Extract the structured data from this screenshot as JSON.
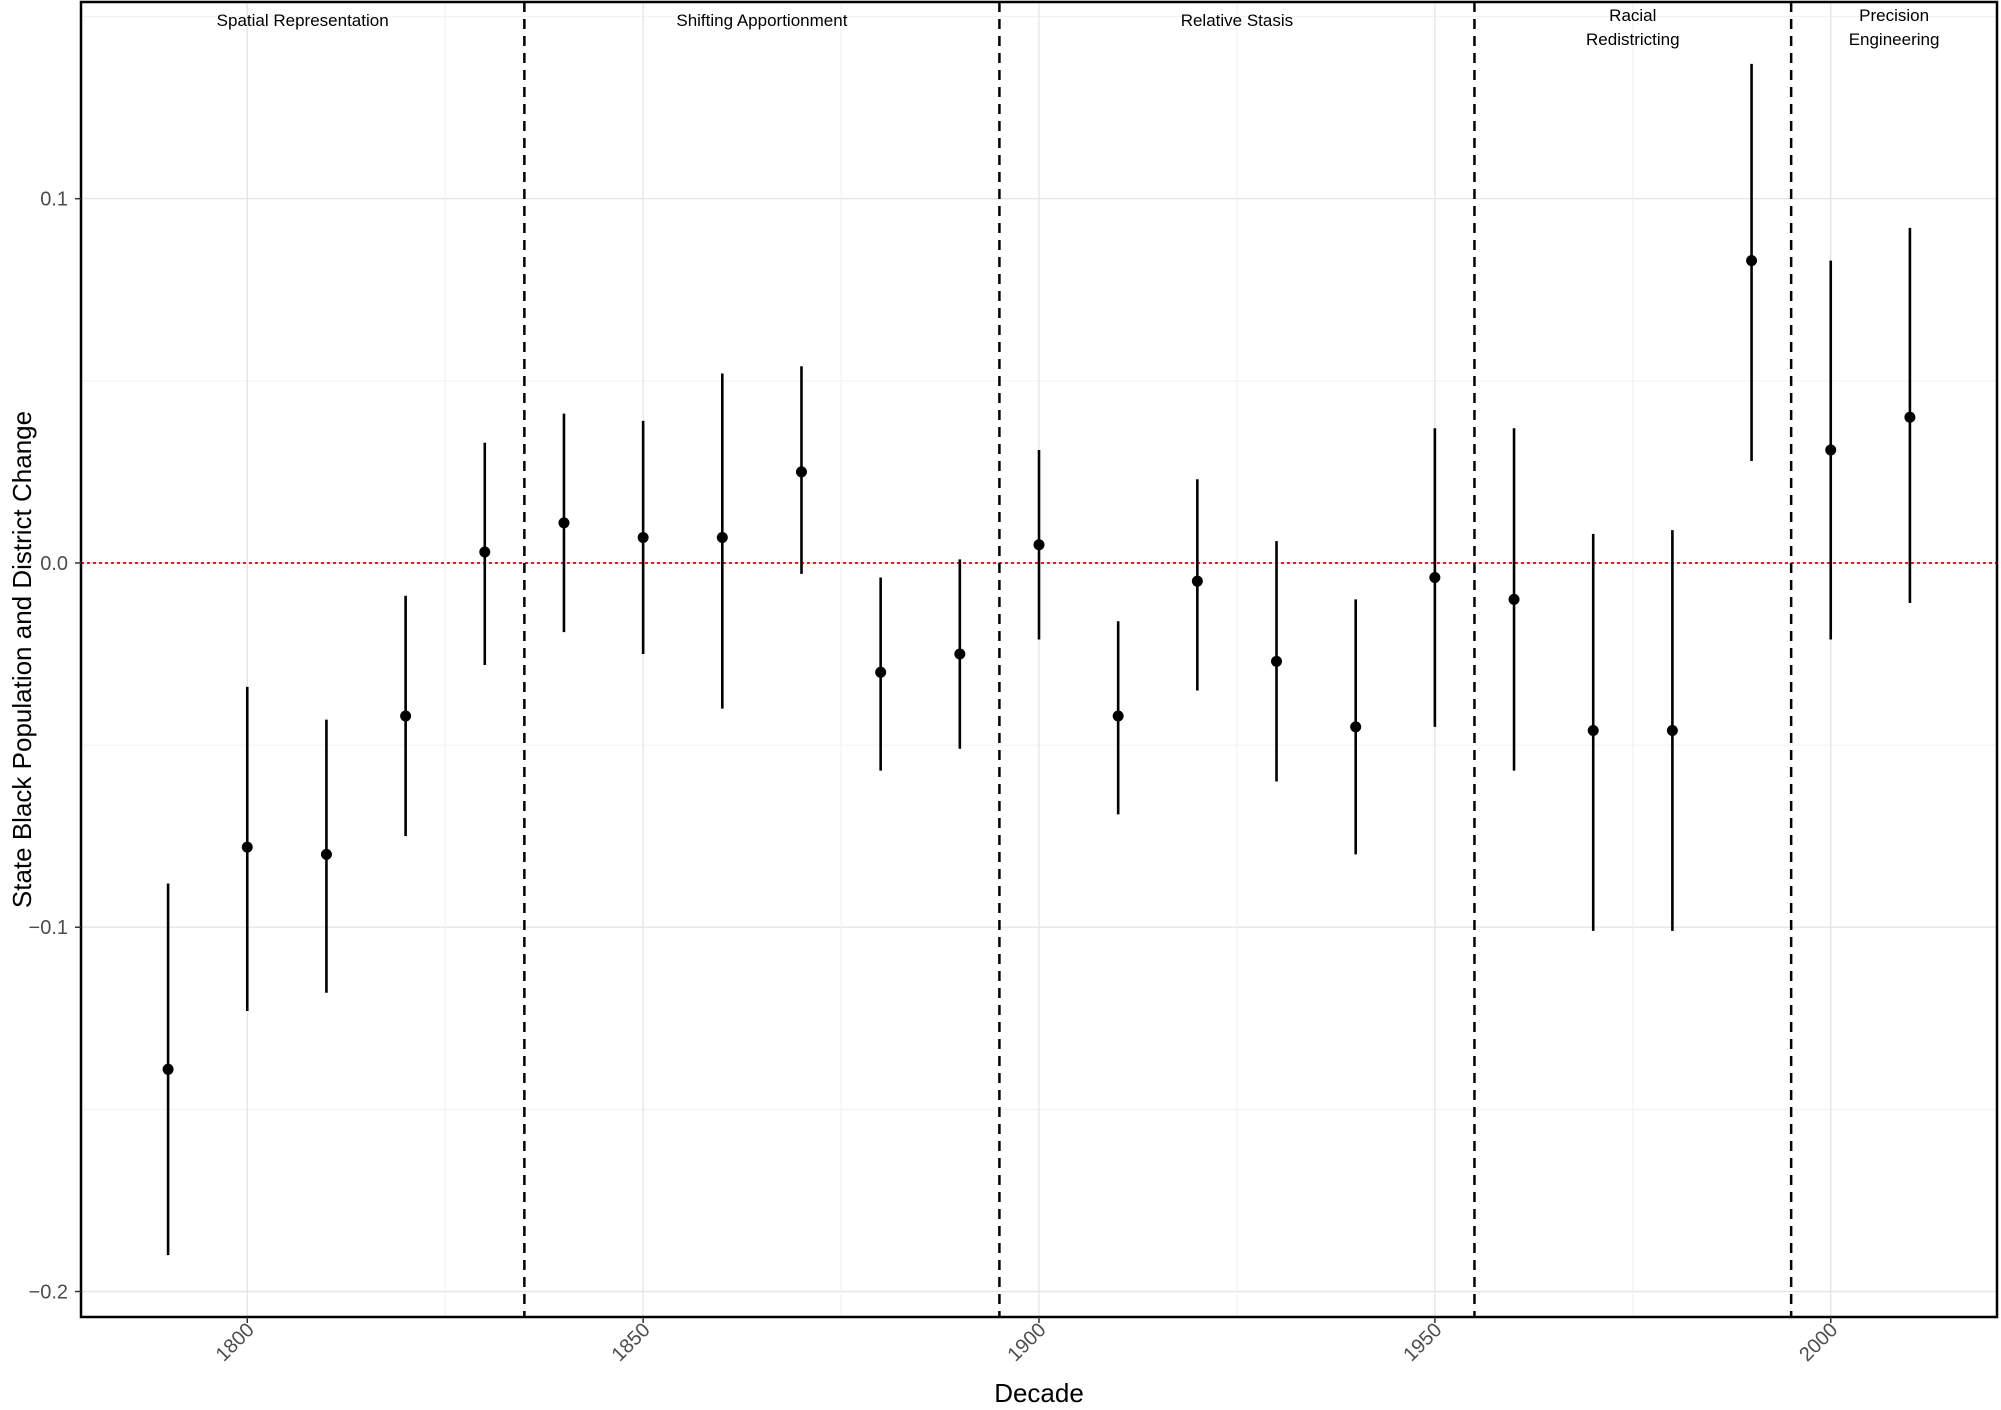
{
  "chart_data": {
    "type": "scatter",
    "title": "",
    "xlabel": "Decade",
    "ylabel": "State Black Population and District Change",
    "xlim": [
      1779,
      2021
    ],
    "ylim": [
      -0.207,
      0.154
    ],
    "x_ticks": [
      1800,
      1850,
      1900,
      1950,
      2000
    ],
    "y_ticks": [
      -0.2,
      -0.1,
      0.0,
      0.1
    ],
    "y_tick_labels": [
      "−0.2",
      "−0.1",
      "0.0",
      "0.1"
    ],
    "grid": true,
    "reference_line": {
      "y": 0.0,
      "style": "dotted",
      "color": "#e0201b"
    },
    "period_breaks": [
      1835,
      1895,
      1955,
      1995
    ],
    "periods": [
      {
        "lines": [
          "Spatial Representation"
        ]
      },
      {
        "lines": [
          "Shifting Apportionment"
        ]
      },
      {
        "lines": [
          "Relative Stasis"
        ]
      },
      {
        "lines": [
          "Racial",
          "Redistricting"
        ]
      },
      {
        "lines": [
          "Precision",
          "Engineering"
        ]
      }
    ],
    "points": [
      {
        "x": 1790,
        "y": -0.139,
        "lo": -0.19,
        "hi": -0.088
      },
      {
        "x": 1800,
        "y": -0.078,
        "lo": -0.123,
        "hi": -0.034
      },
      {
        "x": 1810,
        "y": -0.08,
        "lo": -0.118,
        "hi": -0.043
      },
      {
        "x": 1820,
        "y": -0.042,
        "lo": -0.075,
        "hi": -0.009
      },
      {
        "x": 1830,
        "y": 0.003,
        "lo": -0.028,
        "hi": 0.033
      },
      {
        "x": 1840,
        "y": 0.011,
        "lo": -0.019,
        "hi": 0.041
      },
      {
        "x": 1850,
        "y": 0.007,
        "lo": -0.025,
        "hi": 0.039
      },
      {
        "x": 1860,
        "y": 0.007,
        "lo": -0.04,
        "hi": 0.052
      },
      {
        "x": 1870,
        "y": 0.025,
        "lo": -0.003,
        "hi": 0.054
      },
      {
        "x": 1880,
        "y": -0.03,
        "lo": -0.057,
        "hi": -0.004
      },
      {
        "x": 1890,
        "y": -0.025,
        "lo": -0.051,
        "hi": 0.001
      },
      {
        "x": 1900,
        "y": 0.005,
        "lo": -0.021,
        "hi": 0.031
      },
      {
        "x": 1910,
        "y": -0.042,
        "lo": -0.069,
        "hi": -0.016
      },
      {
        "x": 1920,
        "y": -0.005,
        "lo": -0.035,
        "hi": 0.023
      },
      {
        "x": 1930,
        "y": -0.027,
        "lo": -0.06,
        "hi": 0.006
      },
      {
        "x": 1940,
        "y": -0.045,
        "lo": -0.08,
        "hi": -0.01
      },
      {
        "x": 1950,
        "y": -0.004,
        "lo": -0.045,
        "hi": 0.037
      },
      {
        "x": 1960,
        "y": -0.01,
        "lo": -0.057,
        "hi": 0.037
      },
      {
        "x": 1970,
        "y": -0.046,
        "lo": -0.101,
        "hi": 0.008
      },
      {
        "x": 1980,
        "y": -0.046,
        "lo": -0.101,
        "hi": 0.009
      },
      {
        "x": 1990,
        "y": 0.083,
        "lo": 0.028,
        "hi": 0.137
      },
      {
        "x": 2000,
        "y": 0.031,
        "lo": -0.021,
        "hi": 0.083
      },
      {
        "x": 2010,
        "y": 0.04,
        "lo": -0.011,
        "hi": 0.092
      }
    ]
  }
}
